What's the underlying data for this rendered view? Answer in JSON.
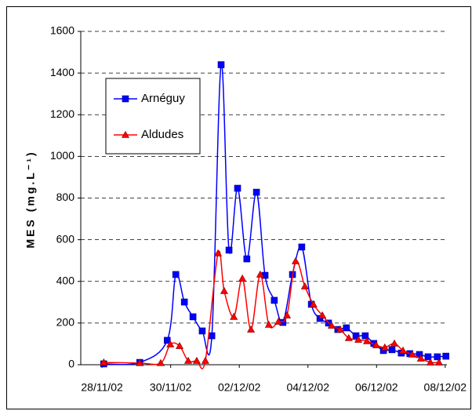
{
  "chart_data": {
    "type": "line",
    "ylabel": "MES (mg.L⁻¹)",
    "xlim": [
      -0.62,
      10.05
    ],
    "xticks": [
      {
        "value": 0,
        "label": "28/11/02"
      },
      {
        "value": 2,
        "label": "30/11/02"
      },
      {
        "value": 4,
        "label": "02/12/02"
      },
      {
        "value": 6,
        "label": "04/12/02"
      },
      {
        "value": 8,
        "label": "06/12/02"
      },
      {
        "value": 10,
        "label": "08/12/02"
      }
    ],
    "ylim": [
      0,
      1600
    ],
    "yticks": [
      0,
      200,
      400,
      600,
      800,
      1000,
      1200,
      1400,
      1600
    ],
    "grid": true,
    "legend": "upper left",
    "series": [
      {
        "name": "Arnéguy",
        "color": "#0000ff",
        "marker": "square",
        "x": [
          0.05,
          1.1,
          1.9,
          2.15,
          2.4,
          2.65,
          2.92,
          3.2,
          3.47,
          3.7,
          3.95,
          4.22,
          4.5,
          4.75,
          5.02,
          5.27,
          5.55,
          5.82,
          6.1,
          6.35,
          6.6,
          6.87,
          7.12,
          7.4,
          7.67,
          7.92,
          8.2,
          8.45,
          8.72,
          8.97,
          9.25,
          9.5,
          9.77,
          10.02
        ],
        "values": [
          4,
          11,
          117,
          433,
          301,
          230,
          162,
          139,
          1440,
          550,
          847,
          508,
          828,
          429,
          309,
          203,
          433,
          565,
          290,
          222,
          200,
          169,
          177,
          139,
          139,
          102,
          68,
          72,
          56,
          53,
          49,
          38,
          38,
          41
        ]
      },
      {
        "name": "Aldudes",
        "color": "#ff0000",
        "marker": "triangle",
        "x": [
          0.05,
          1.1,
          1.71,
          1.99,
          2.26,
          2.51,
          2.76,
          3.01,
          3.38,
          3.56,
          3.84,
          4.09,
          4.34,
          4.61,
          4.86,
          5.14,
          5.39,
          5.64,
          5.91,
          6.16,
          6.42,
          6.69,
          6.94,
          7.19,
          7.47,
          7.72,
          7.99,
          8.24,
          8.52,
          8.77,
          9.04,
          9.29,
          9.57,
          9.82
        ],
        "values": [
          11,
          8,
          8,
          98,
          90,
          19,
          19,
          19,
          535,
          354,
          230,
          414,
          169,
          433,
          192,
          207,
          237,
          497,
          376,
          290,
          237,
          188,
          169,
          128,
          120,
          113,
          94,
          83,
          102,
          68,
          49,
          30,
          11,
          11
        ]
      }
    ]
  }
}
